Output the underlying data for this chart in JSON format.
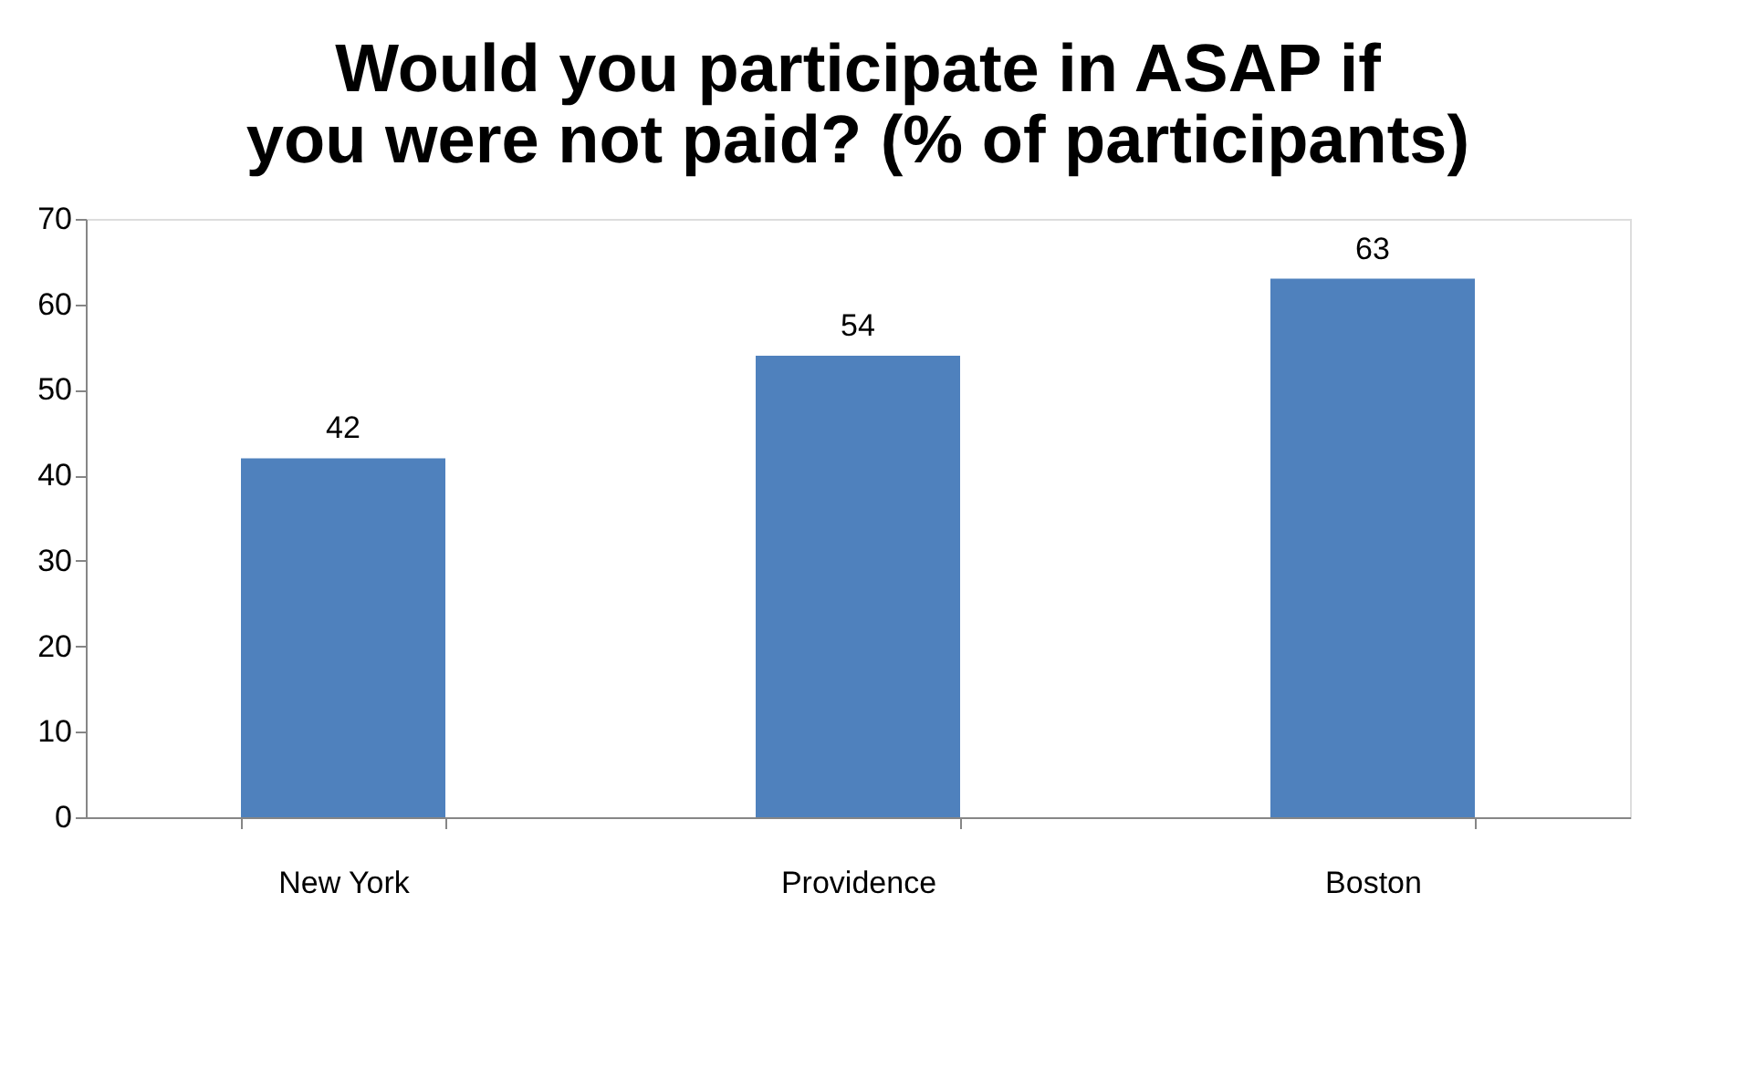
{
  "chart_data": {
    "type": "bar",
    "title": "Would you participate in ASAP if you were not paid? (% of participants)",
    "categories": [
      "New York",
      "Providence",
      "Boston"
    ],
    "values": [
      42,
      54,
      63
    ],
    "color": "#4f81bd",
    "ylim": [
      0,
      70
    ],
    "yticks": [
      0,
      10,
      20,
      30,
      40,
      50,
      60,
      70
    ],
    "grid": false,
    "data_labels": true
  }
}
